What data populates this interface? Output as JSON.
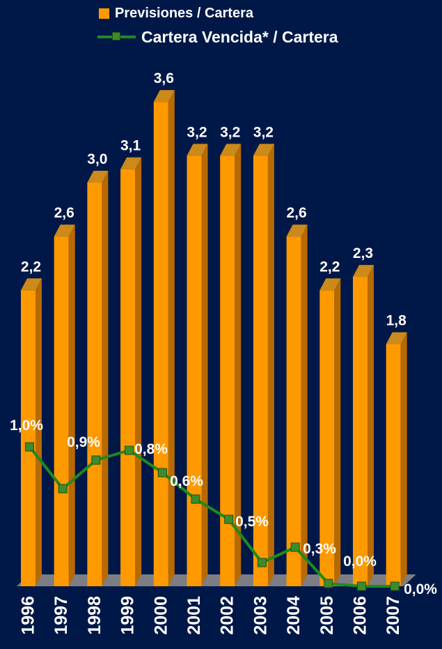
{
  "legend": {
    "bar_label": "Previsiones / Cartera",
    "line_label": "Cartera Vencida* / Cartera"
  },
  "colors": {
    "background": "#001848",
    "bar_front": "#FF9900",
    "bar_side": "#B86A00",
    "bar_top": "#CC8A1A",
    "line": "#1F8A1F",
    "marker": "#3C8C2C",
    "floor": "#8A8A8A"
  },
  "chart_data": {
    "type": "bar+line",
    "categories": [
      "1996",
      "1997",
      "1998",
      "1999",
      "2000",
      "2001",
      "2002",
      "2003",
      "2004",
      "2005",
      "2006",
      "2007"
    ],
    "series": [
      {
        "name": "Previsiones / Cartera",
        "type": "bar",
        "values": [
          2.2,
          2.6,
          3.0,
          3.1,
          3.6,
          3.2,
          3.2,
          3.2,
          2.6,
          2.2,
          2.3,
          1.8
        ],
        "labels": [
          "2,2",
          "2,6",
          "3,0",
          "3,1",
          "3,6",
          "3,2",
          "3,2",
          "3,2",
          "2,6",
          "2,2",
          "2,3",
          "1,8"
        ]
      },
      {
        "name": "Cartera Vencida* / Cartera",
        "type": "line",
        "values": [
          1.0,
          0.7,
          0.9,
          1.0,
          0.8,
          0.6,
          0.5,
          0.2,
          0.3,
          0.0,
          0.0,
          0.0
        ],
        "labels": [
          "1,0%",
          "",
          "0,9%",
          "",
          "0,8%",
          "0,6%",
          "0,5%",
          "",
          "0,3%",
          "",
          "0,0%",
          "0,0%"
        ]
      }
    ],
    "ylim": [
      0,
      3.6
    ],
    "grid": false,
    "legend_position": "top-center"
  }
}
